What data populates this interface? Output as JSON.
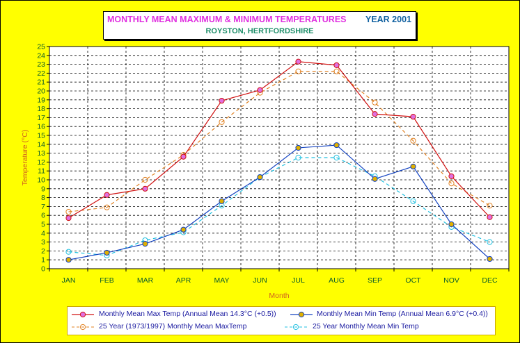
{
  "title": {
    "main": "MONTHLY MEAN MAXIMUM & MINIMUM TEMPERATURES",
    "year": "YEAR 2001",
    "subtitle": "ROYSTON, HERTFORDSHIRE"
  },
  "colors": {
    "max_2001": "#d01010",
    "min_2001": "#1040c0",
    "max_25yr": "#e08020",
    "min_25yr": "#20c0e0",
    "ylabel": "#d06020",
    "xlabel": "#d06020",
    "ticks": "#0a5c2a",
    "title_main": "#e030e0",
    "title_year": "#1060a0",
    "subtitle": "#1f8f6a",
    "background": "#ffff00"
  },
  "legend": [
    "Monthly Mean Max Temp (Annual Mean 14.3°C (+0.5))",
    "Monthly Mean Min Temp (Annual Mean 6.9°C (+0.4))",
    "25 Year (1973/1997) Monthly Mean MaxTemp",
    "25 Year Monthly Mean Min Temp"
  ],
  "chart_data": {
    "type": "line",
    "categories": [
      "JAN",
      "FEB",
      "MAR",
      "APR",
      "MAY",
      "JUN",
      "JUL",
      "AUG",
      "SEP",
      "OCT",
      "NOV",
      "DEC"
    ],
    "xlabel": "Month",
    "ylabel": "Temperature (°C)",
    "ylim": [
      0,
      25
    ],
    "yticks": [
      0,
      1,
      2,
      3,
      4,
      5,
      6,
      7,
      8,
      9,
      10,
      11,
      12,
      13,
      14,
      15,
      16,
      17,
      18,
      19,
      20,
      21,
      22,
      23,
      24,
      25
    ],
    "grid": true,
    "legend_position": "bottom",
    "series": [
      {
        "name": "Monthly Mean Max Temp (Annual Mean 14.3°C (+0.5))",
        "style": "solid",
        "marker": "circle-filled-pink",
        "values": [
          5.7,
          8.3,
          9.0,
          12.6,
          18.9,
          20.1,
          23.3,
          22.9,
          17.4,
          17.1,
          10.4,
          5.8
        ]
      },
      {
        "name": "Monthly Mean Min Temp (Annual Mean 6.9°C (+0.4))",
        "style": "solid",
        "marker": "circle-filled-gold",
        "values": [
          1.0,
          1.8,
          2.8,
          4.4,
          7.6,
          10.3,
          13.6,
          13.9,
          10.1,
          11.5,
          5.0,
          1.1
        ]
      },
      {
        "name": "25 Year (1973/1997) Monthly Mean MaxTemp",
        "style": "dashed",
        "marker": "circle-open",
        "values": [
          6.4,
          6.9,
          10.0,
          12.8,
          16.5,
          19.8,
          22.2,
          22.2,
          18.7,
          14.4,
          9.6,
          7.1
        ]
      },
      {
        "name": "25 Year Monthly Mean Min Temp",
        "style": "dashed",
        "marker": "circle-open",
        "values": [
          1.9,
          1.5,
          3.2,
          4.1,
          7.1,
          10.3,
          12.5,
          12.5,
          10.4,
          7.6,
          4.7,
          3.0
        ]
      }
    ]
  }
}
